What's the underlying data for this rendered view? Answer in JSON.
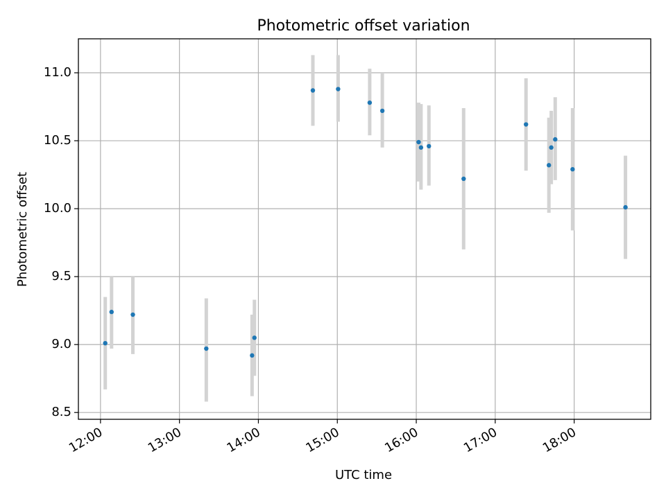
{
  "chart_data": {
    "type": "scatter",
    "title": "Photometric offset variation",
    "xlabel": "UTC time",
    "ylabel": "Photometric offset",
    "grid": true,
    "xlim_hours": [
      11.72,
      18.97
    ],
    "ylim": [
      8.45,
      11.25
    ],
    "xticks": [
      {
        "value": 12,
        "label": "12:00"
      },
      {
        "value": 13,
        "label": "13:00"
      },
      {
        "value": 14,
        "label": "14:00"
      },
      {
        "value": 15,
        "label": "15:00"
      },
      {
        "value": 16,
        "label": "16:00"
      },
      {
        "value": 17,
        "label": "17:00"
      },
      {
        "value": 18,
        "label": "18:00"
      }
    ],
    "yticks": [
      {
        "value": 8.5,
        "label": "8.5"
      },
      {
        "value": 9.0,
        "label": "9.0"
      },
      {
        "value": 9.5,
        "label": "9.5"
      },
      {
        "value": 10.0,
        "label": "10.0"
      },
      {
        "value": 10.5,
        "label": "10.5"
      },
      {
        "value": 11.0,
        "label": "11.0"
      }
    ],
    "colors": {
      "point": "#1f77b4",
      "errorbar": "#d3d3d3",
      "grid": "#b0b0b0",
      "axes": "#000000"
    },
    "points": [
      {
        "time": 12.06,
        "value": 9.01,
        "low": 8.67,
        "high": 9.35
      },
      {
        "time": 12.14,
        "value": 9.24,
        "low": 8.97,
        "high": 9.5
      },
      {
        "time": 12.41,
        "value": 9.22,
        "low": 8.93,
        "high": 9.5
      },
      {
        "time": 13.34,
        "value": 8.97,
        "low": 8.58,
        "high": 9.34
      },
      {
        "time": 13.92,
        "value": 8.92,
        "low": 8.62,
        "high": 9.22
      },
      {
        "time": 13.95,
        "value": 9.05,
        "low": 8.77,
        "high": 9.33
      },
      {
        "time": 14.69,
        "value": 10.87,
        "low": 10.61,
        "high": 11.13
      },
      {
        "time": 15.01,
        "value": 10.88,
        "low": 10.64,
        "high": 11.13
      },
      {
        "time": 15.41,
        "value": 10.78,
        "low": 10.54,
        "high": 11.03
      },
      {
        "time": 15.57,
        "value": 10.72,
        "low": 10.45,
        "high": 11.0
      },
      {
        "time": 16.03,
        "value": 10.49,
        "low": 10.2,
        "high": 10.78
      },
      {
        "time": 16.06,
        "value": 10.45,
        "low": 10.14,
        "high": 10.77
      },
      {
        "time": 16.16,
        "value": 10.46,
        "low": 10.17,
        "high": 10.76
      },
      {
        "time": 16.6,
        "value": 10.22,
        "low": 9.7,
        "high": 10.74
      },
      {
        "time": 17.39,
        "value": 10.62,
        "low": 10.28,
        "high": 10.96
      },
      {
        "time": 17.68,
        "value": 10.32,
        "low": 9.97,
        "high": 10.67
      },
      {
        "time": 17.71,
        "value": 10.45,
        "low": 10.18,
        "high": 10.72
      },
      {
        "time": 17.76,
        "value": 10.51,
        "low": 10.21,
        "high": 10.82
      },
      {
        "time": 17.98,
        "value": 10.29,
        "low": 9.84,
        "high": 10.74
      },
      {
        "time": 18.65,
        "value": 10.01,
        "low": 9.63,
        "high": 10.39
      }
    ]
  }
}
